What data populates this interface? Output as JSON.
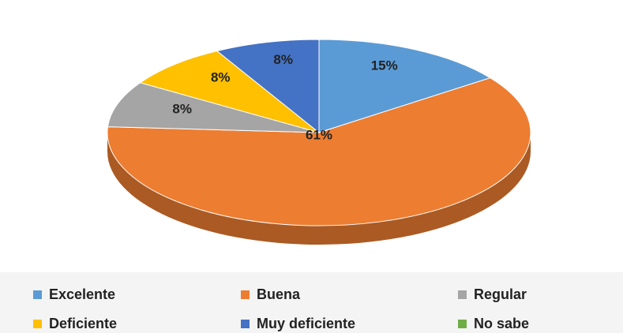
{
  "chart_data": {
    "type": "pie",
    "categories": [
      "Excelente",
      "Buena",
      "Regular",
      "Deficiente",
      "Muy deficiente",
      "No sabe"
    ],
    "values": [
      15,
      61,
      8,
      8,
      8,
      0
    ],
    "value_labels": [
      "15%",
      "61%",
      "8%",
      "8%",
      "8%",
      null
    ],
    "colors": [
      "#5b9bd5",
      "#ed7d31",
      "#a5a5a5",
      "#ffc000",
      "#4472c4",
      "#70ad47"
    ],
    "legend": "bottom"
  }
}
